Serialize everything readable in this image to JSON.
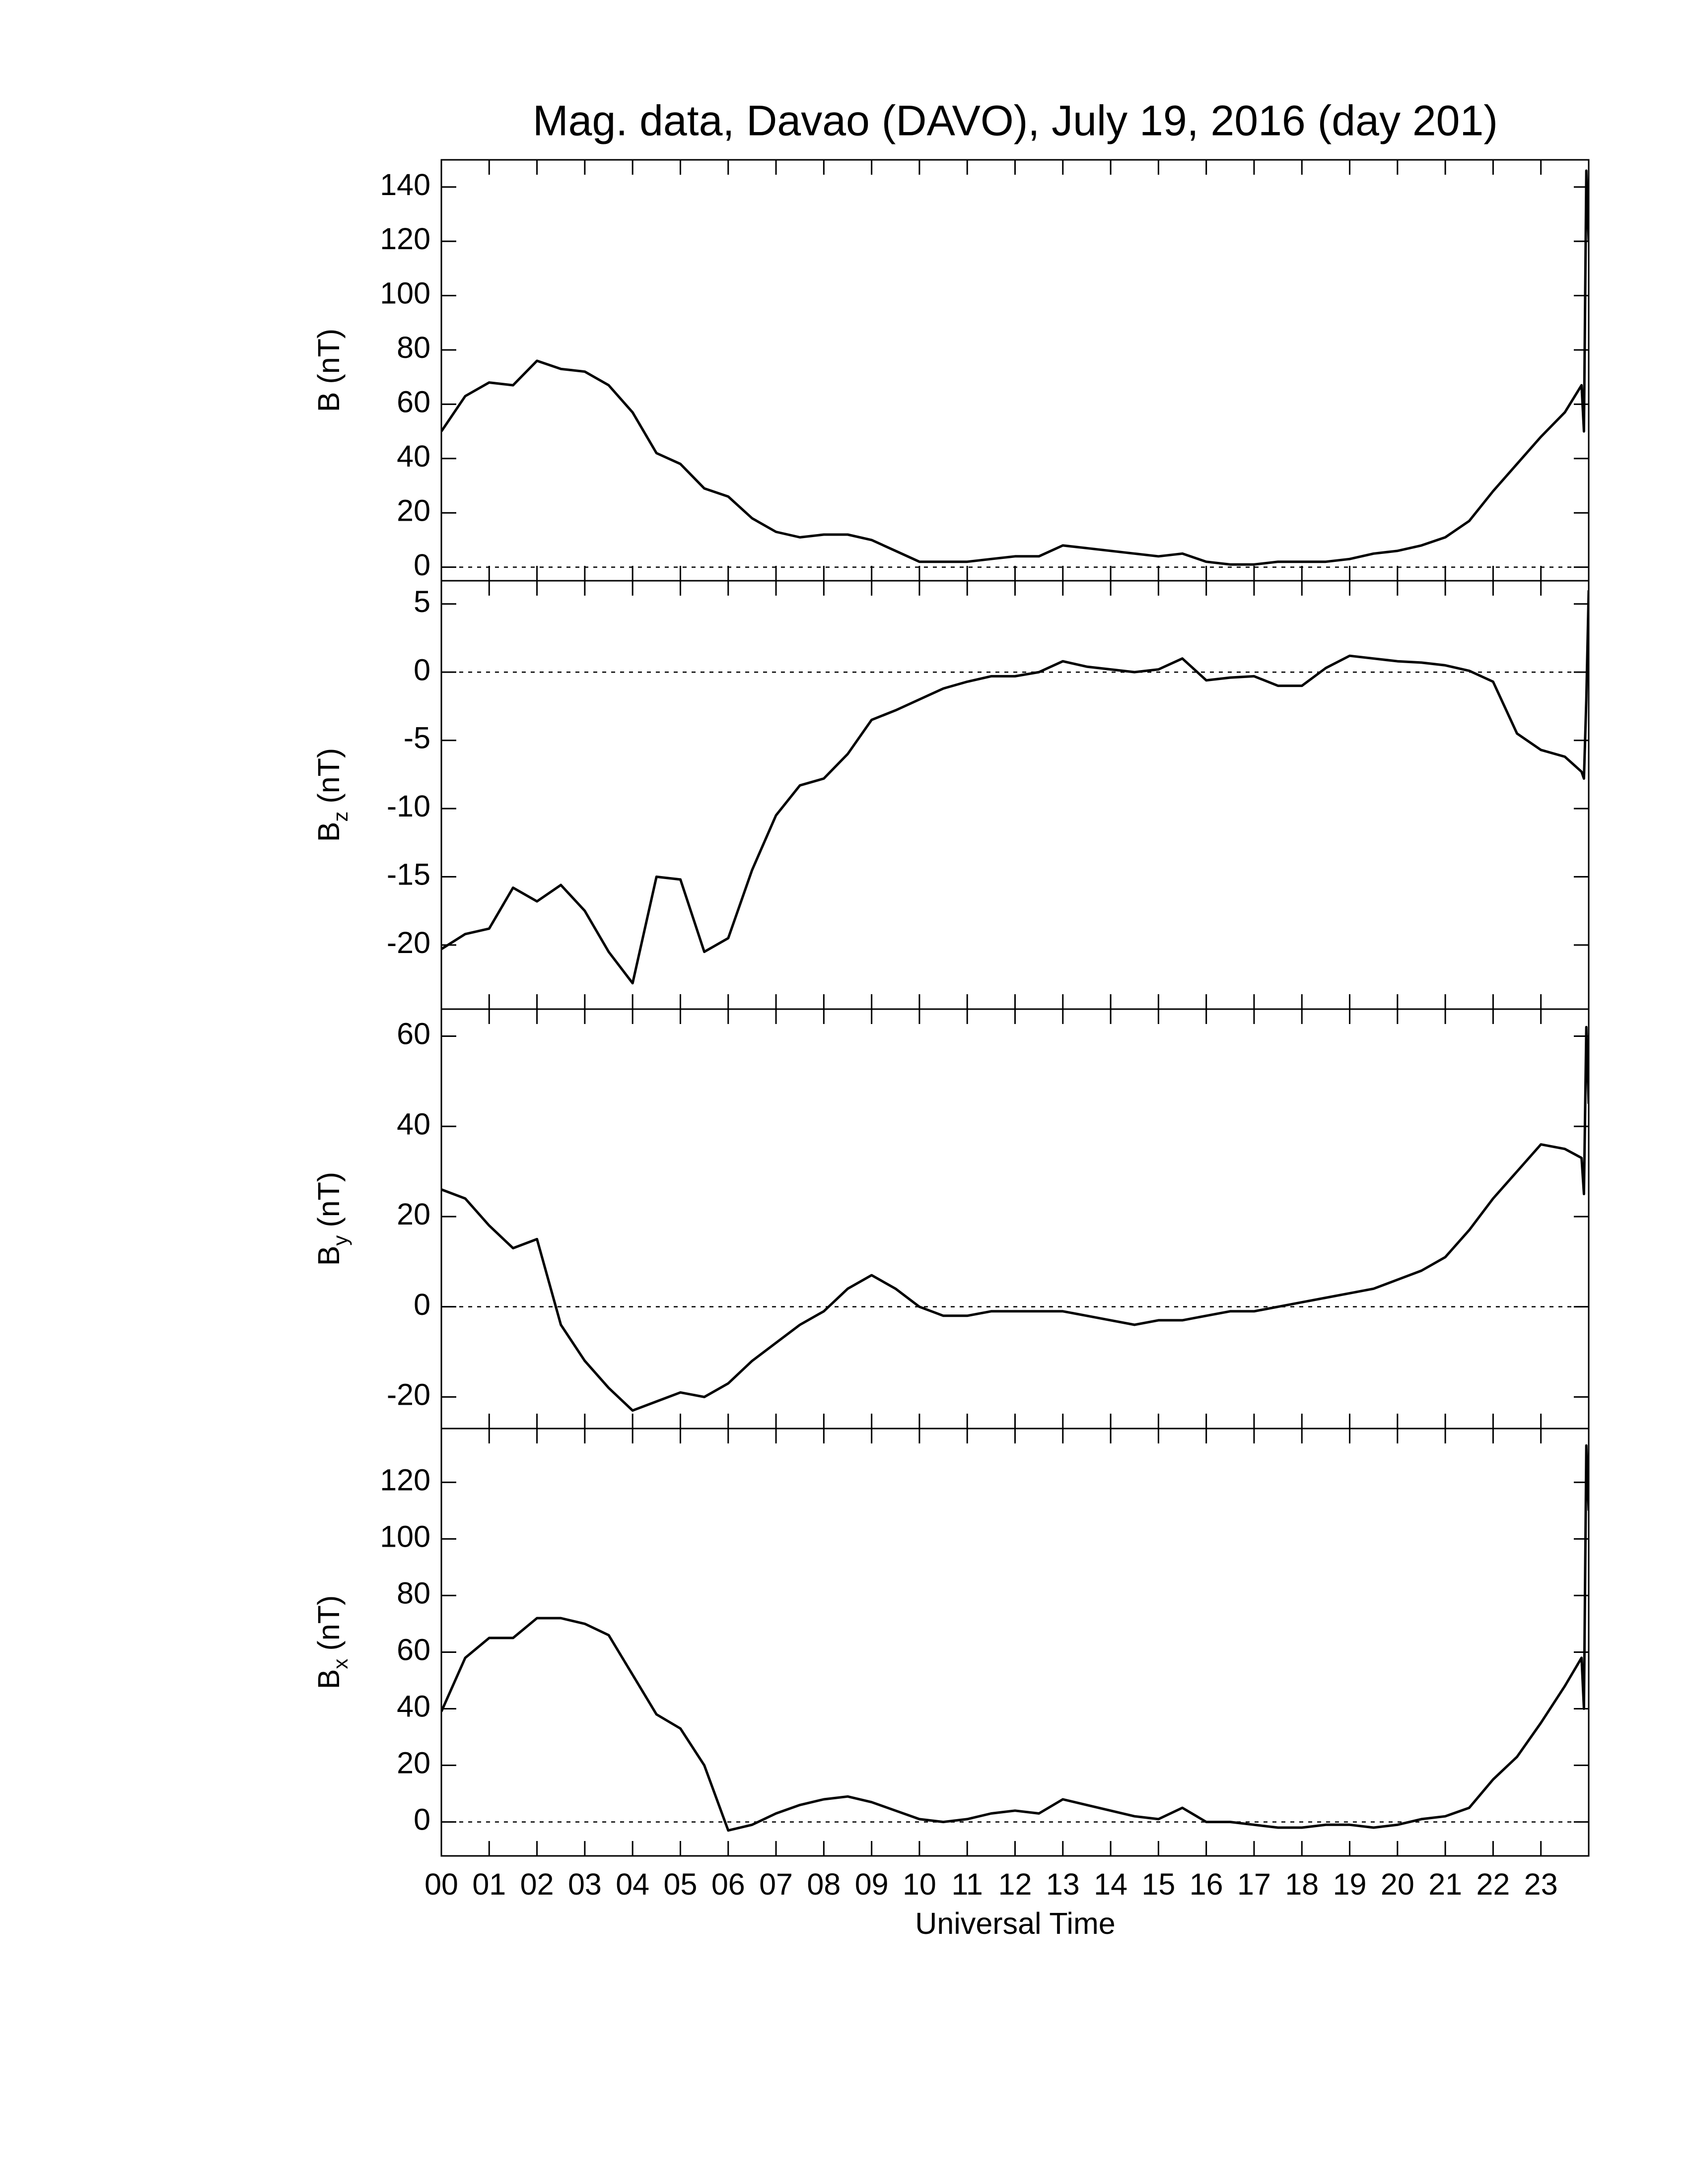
{
  "title": "Mag. data, Davao (DAVO), July 19, 2016 (day 201)",
  "xlabel": "Universal Time",
  "chart_data": [
    {
      "type": "line",
      "ylabel": "B",
      "ylabel_unit": "(nT)",
      "color": "#000000",
      "zero_line": true,
      "xlim": [
        0,
        24
      ],
      "ylim": [
        -5,
        150
      ],
      "yticks": [
        0,
        20,
        40,
        60,
        80,
        100,
        120,
        140
      ],
      "xticks": [
        0,
        1,
        2,
        3,
        4,
        5,
        6,
        7,
        8,
        9,
        10,
        11,
        12,
        13,
        14,
        15,
        16,
        17,
        18,
        19,
        20,
        21,
        22,
        23
      ],
      "x": [
        0,
        0.5,
        1,
        1.5,
        2,
        2.5,
        3,
        3.5,
        4,
        4.5,
        5,
        5.5,
        6,
        6.5,
        7,
        7.5,
        8,
        8.5,
        9,
        9.5,
        10,
        10.5,
        11,
        11.5,
        12,
        12.5,
        13,
        13.5,
        14,
        14.5,
        15,
        15.5,
        16,
        16.5,
        17,
        17.5,
        18,
        18.5,
        19,
        19.5,
        20,
        20.5,
        21,
        21.5,
        22,
        22.5,
        23,
        23.5,
        23.85,
        23.9,
        23.95,
        24
      ],
      "values": [
        50,
        63,
        68,
        67,
        76,
        73,
        72,
        67,
        57,
        42,
        38,
        29,
        26,
        18,
        13,
        11,
        12,
        12,
        10,
        6,
        2,
        2,
        2,
        3,
        4,
        4,
        8,
        7,
        6,
        5,
        4,
        5,
        2,
        1,
        1,
        2,
        2,
        2,
        3,
        5,
        6,
        8,
        11,
        17,
        28,
        38,
        48,
        57,
        67,
        50,
        146,
        120
      ]
    },
    {
      "type": "line",
      "ylabel": "B",
      "ylabel_sub": "z",
      "ylabel_unit": "(nT)",
      "color": "#000000",
      "zero_line": true,
      "xlim": [
        0,
        24
      ],
      "ylim": [
        -24.7,
        6.7
      ],
      "yticks": [
        5,
        0,
        -5,
        -10,
        -15,
        -20
      ],
      "xticks": [
        0,
        1,
        2,
        3,
        4,
        5,
        6,
        7,
        8,
        9,
        10,
        11,
        12,
        13,
        14,
        15,
        16,
        17,
        18,
        19,
        20,
        21,
        22,
        23
      ],
      "x": [
        0,
        0.5,
        1,
        1.5,
        2,
        2.5,
        3,
        3.5,
        4,
        4.5,
        5,
        5.5,
        6,
        6.5,
        7,
        7.5,
        8,
        8.5,
        9,
        9.5,
        10,
        10.5,
        11,
        11.5,
        12,
        12.5,
        13,
        13.5,
        14,
        14.5,
        15,
        15.5,
        16,
        16.5,
        17,
        17.5,
        18,
        18.5,
        19,
        19.5,
        20,
        20.5,
        21,
        21.5,
        22,
        22.5,
        23,
        23.5,
        23.85,
        23.9,
        23.95,
        24
      ],
      "values": [
        -20.3,
        -19.2,
        -18.8,
        -15.8,
        -16.8,
        -15.6,
        -17.5,
        -20.5,
        -22.8,
        -15,
        -15.2,
        -20.5,
        -19.5,
        -14.5,
        -10.5,
        -8.3,
        -7.8,
        -6,
        -3.5,
        -2.8,
        -2,
        -1.2,
        -0.7,
        -0.3,
        -0.3,
        0,
        0.8,
        0.4,
        0.2,
        0,
        0.2,
        1,
        -0.6,
        -0.4,
        -0.3,
        -1,
        -1,
        0.3,
        1.2,
        1,
        0.8,
        0.7,
        0.5,
        0.1,
        -0.7,
        -4.5,
        -5.7,
        -6.2,
        -7.3,
        -7.8,
        -2,
        6
      ]
    },
    {
      "type": "line",
      "ylabel": "B",
      "ylabel_sub": "y",
      "ylabel_unit": "(nT)",
      "color": "#000000",
      "zero_line": true,
      "xlim": [
        0,
        24
      ],
      "ylim": [
        -27,
        66
      ],
      "yticks": [
        60,
        40,
        20,
        0,
        -20
      ],
      "xticks": [
        0,
        1,
        2,
        3,
        4,
        5,
        6,
        7,
        8,
        9,
        10,
        11,
        12,
        13,
        14,
        15,
        16,
        17,
        18,
        19,
        20,
        21,
        22,
        23
      ],
      "x": [
        0,
        0.5,
        1,
        1.5,
        2,
        2.5,
        3,
        3.5,
        4,
        4.5,
        5,
        5.5,
        6,
        6.5,
        7,
        7.5,
        8,
        8.5,
        9,
        9.5,
        10,
        10.5,
        11,
        11.5,
        12,
        12.5,
        13,
        13.5,
        14,
        14.5,
        15,
        15.5,
        16,
        16.5,
        17,
        17.5,
        18,
        18.5,
        19,
        19.5,
        20,
        20.5,
        21,
        21.5,
        22,
        22.5,
        23,
        23.5,
        23.85,
        23.9,
        23.95,
        24
      ],
      "values": [
        26,
        24,
        18,
        13,
        15,
        -4,
        -12,
        -18,
        -23,
        -21,
        -19,
        -20,
        -17,
        -12,
        -8,
        -4,
        -1,
        4,
        7,
        4,
        0,
        -2,
        -2,
        -1,
        -1,
        -1,
        -1,
        -2,
        -3,
        -4,
        -3,
        -3,
        -2,
        -1,
        -1,
        0,
        1,
        2,
        3,
        4,
        6,
        8,
        11,
        17,
        24,
        30,
        36,
        35,
        33,
        25,
        62,
        45
      ]
    },
    {
      "type": "line",
      "ylabel": "B",
      "ylabel_sub": "x",
      "ylabel_unit": "(nT)",
      "color": "#000000",
      "zero_line": true,
      "xlim": [
        0,
        24
      ],
      "ylim": [
        -12,
        139
      ],
      "yticks": [
        0,
        20,
        40,
        60,
        80,
        100,
        120
      ],
      "xticks": [
        {
          "value": 0,
          "label": "00"
        },
        {
          "value": 1,
          "label": "01"
        },
        {
          "value": 2,
          "label": "02"
        },
        {
          "value": 3,
          "label": "03"
        },
        {
          "value": 4,
          "label": "04"
        },
        {
          "value": 5,
          "label": "05"
        },
        {
          "value": 6,
          "label": "06"
        },
        {
          "value": 7,
          "label": "07"
        },
        {
          "value": 8,
          "label": "08"
        },
        {
          "value": 9,
          "label": "09"
        },
        {
          "value": 10,
          "label": "10"
        },
        {
          "value": 11,
          "label": "11"
        },
        {
          "value": 12,
          "label": "12"
        },
        {
          "value": 13,
          "label": "13"
        },
        {
          "value": 14,
          "label": "14"
        },
        {
          "value": 15,
          "label": "15"
        },
        {
          "value": 16,
          "label": "16"
        },
        {
          "value": 17,
          "label": "17"
        },
        {
          "value": 18,
          "label": "18"
        },
        {
          "value": 19,
          "label": "19"
        },
        {
          "value": 20,
          "label": "20"
        },
        {
          "value": 21,
          "label": "21"
        },
        {
          "value": 22,
          "label": "22"
        },
        {
          "value": 23,
          "label": "23"
        }
      ],
      "x": [
        0,
        0.5,
        1,
        1.5,
        2,
        2.5,
        3,
        3.5,
        4,
        4.5,
        5,
        5.5,
        6,
        6.5,
        7,
        7.5,
        8,
        8.5,
        9,
        9.5,
        10,
        10.5,
        11,
        11.5,
        12,
        12.5,
        13,
        13.5,
        14,
        14.5,
        15,
        15.5,
        16,
        16.5,
        17,
        17.5,
        18,
        18.5,
        19,
        19.5,
        20,
        20.5,
        21,
        21.5,
        22,
        22.5,
        23,
        23.5,
        23.85,
        23.9,
        23.95,
        24
      ],
      "values": [
        39,
        58,
        65,
        65,
        72,
        72,
        70,
        66,
        52,
        38,
        33,
        20,
        -3,
        -1,
        3,
        6,
        8,
        9,
        7,
        4,
        1,
        0,
        1,
        3,
        4,
        3,
        8,
        6,
        4,
        2,
        1,
        5,
        0,
        0,
        -1,
        -2,
        -2,
        -1,
        -1,
        -2,
        -1,
        1,
        2,
        5,
        15,
        23,
        35,
        48,
        58,
        40,
        133,
        110
      ]
    }
  ]
}
